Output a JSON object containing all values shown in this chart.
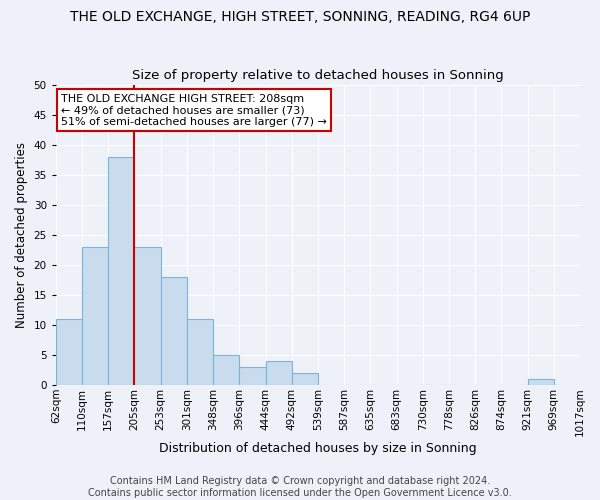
{
  "title": "THE OLD EXCHANGE, HIGH STREET, SONNING, READING, RG4 6UP",
  "subtitle": "Size of property relative to detached houses in Sonning",
  "xlabel": "Distribution of detached houses by size in Sonning",
  "ylabel": "Number of detached properties",
  "bar_values": [
    11,
    23,
    38,
    23,
    18,
    11,
    5,
    3,
    4,
    2,
    0,
    0,
    0,
    0,
    0,
    0,
    0,
    0,
    1,
    0
  ],
  "all_tick_labels": [
    "62sqm",
    "110sqm",
    "157sqm",
    "205sqm",
    "253sqm",
    "301sqm",
    "348sqm",
    "396sqm",
    "444sqm",
    "492sqm",
    "539sqm",
    "587sqm",
    "635sqm",
    "683sqm",
    "730sqm",
    "778sqm",
    "826sqm",
    "874sqm",
    "921sqm",
    "969sqm",
    "1017sqm"
  ],
  "bar_color": "#c9dcee",
  "bar_edge_color": "#7ab4d8",
  "bar_edge_width": 0.8,
  "red_line_index": 3,
  "red_line_color": "#cc0000",
  "ylim": [
    0,
    50
  ],
  "yticks": [
    0,
    5,
    10,
    15,
    20,
    25,
    30,
    35,
    40,
    45,
    50
  ],
  "annotation_text": "THE OLD EXCHANGE HIGH STREET: 208sqm\n← 49% of detached houses are smaller (73)\n51% of semi-detached houses are larger (77) →",
  "annotation_box_facecolor": "#ffffff",
  "annotation_box_edgecolor": "#cc0000",
  "bg_color": "#eef2f8",
  "grid_color": "#ffffff",
  "footer_text": "Contains HM Land Registry data © Crown copyright and database right 2024.\nContains public sector information licensed under the Open Government Licence v3.0.",
  "title_fontsize": 10,
  "subtitle_fontsize": 9.5,
  "xlabel_fontsize": 9,
  "ylabel_fontsize": 8.5,
  "tick_fontsize": 7.5,
  "annotation_fontsize": 8,
  "footer_fontsize": 7
}
